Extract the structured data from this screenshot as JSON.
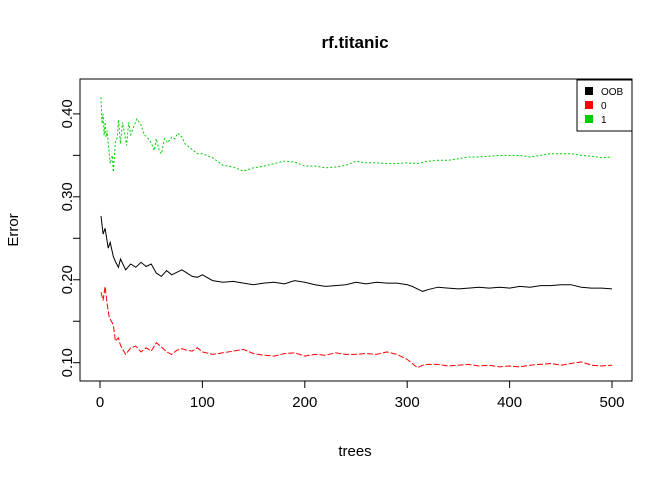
{
  "chart_data": {
    "type": "line",
    "title": "rf.titanic",
    "xlabel": "trees",
    "ylabel": "Error",
    "xlim": [
      0,
      500
    ],
    "ylim": [
      0.09,
      0.43
    ],
    "x_ticks": [
      "0",
      "100",
      "200",
      "300",
      "400",
      "500"
    ],
    "y_ticks": [
      "0.10",
      "0.20",
      "0.30",
      "0.40"
    ],
    "legend_position": "top-right",
    "series": [
      {
        "name": "OOB",
        "color": "#000000",
        "dash": "solid",
        "x": [
          1,
          3,
          5,
          8,
          10,
          13,
          15,
          18,
          20,
          25,
          30,
          35,
          40,
          45,
          50,
          55,
          60,
          65,
          70,
          75,
          80,
          85,
          90,
          95,
          100,
          110,
          120,
          130,
          140,
          150,
          160,
          170,
          180,
          190,
          200,
          210,
          220,
          230,
          240,
          250,
          260,
          270,
          280,
          290,
          300,
          305,
          310,
          315,
          320,
          330,
          340,
          350,
          360,
          370,
          380,
          390,
          400,
          410,
          420,
          430,
          440,
          450,
          460,
          470,
          480,
          490,
          500
        ],
        "values": [
          0.277,
          0.255,
          0.262,
          0.238,
          0.245,
          0.228,
          0.222,
          0.215,
          0.225,
          0.212,
          0.219,
          0.215,
          0.221,
          0.216,
          0.219,
          0.208,
          0.204,
          0.211,
          0.206,
          0.209,
          0.212,
          0.208,
          0.204,
          0.203,
          0.206,
          0.199,
          0.197,
          0.198,
          0.196,
          0.194,
          0.196,
          0.197,
          0.195,
          0.199,
          0.197,
          0.194,
          0.192,
          0.193,
          0.194,
          0.197,
          0.195,
          0.197,
          0.196,
          0.196,
          0.194,
          0.192,
          0.189,
          0.186,
          0.188,
          0.191,
          0.19,
          0.189,
          0.19,
          0.191,
          0.19,
          0.191,
          0.19,
          0.192,
          0.191,
          0.193,
          0.193,
          0.194,
          0.194,
          0.191,
          0.19,
          0.19,
          0.189
        ]
      },
      {
        "name": "0",
        "color": "#ff0000",
        "dash": "6,2",
        "x": [
          1,
          3,
          5,
          7,
          9,
          11,
          13,
          15,
          18,
          20,
          25,
          30,
          35,
          40,
          45,
          50,
          55,
          60,
          65,
          70,
          75,
          80,
          85,
          90,
          95,
          100,
          110,
          120,
          130,
          140,
          150,
          160,
          170,
          180,
          190,
          200,
          210,
          220,
          230,
          240,
          250,
          260,
          270,
          280,
          290,
          300,
          305,
          310,
          315,
          320,
          330,
          340,
          350,
          360,
          370,
          380,
          390,
          400,
          410,
          420,
          430,
          440,
          450,
          460,
          470,
          480,
          490,
          500
        ],
        "values": [
          0.185,
          0.175,
          0.192,
          0.17,
          0.155,
          0.15,
          0.146,
          0.126,
          0.13,
          0.121,
          0.11,
          0.118,
          0.12,
          0.113,
          0.118,
          0.114,
          0.124,
          0.119,
          0.113,
          0.11,
          0.115,
          0.117,
          0.115,
          0.114,
          0.118,
          0.113,
          0.11,
          0.112,
          0.114,
          0.116,
          0.111,
          0.109,
          0.108,
          0.111,
          0.112,
          0.108,
          0.11,
          0.109,
          0.112,
          0.11,
          0.11,
          0.111,
          0.11,
          0.113,
          0.11,
          0.104,
          0.099,
          0.094,
          0.097,
          0.098,
          0.098,
          0.096,
          0.097,
          0.098,
          0.096,
          0.097,
          0.095,
          0.096,
          0.095,
          0.097,
          0.098,
          0.099,
          0.097,
          0.099,
          0.101,
          0.097,
          0.096,
          0.097
        ]
      },
      {
        "name": "1",
        "color": "#00cd00",
        "dash": "2,2",
        "x": [
          1,
          2,
          3,
          4,
          5,
          6,
          7,
          8,
          10,
          12,
          13,
          15,
          17,
          18,
          20,
          22,
          24,
          26,
          28,
          30,
          33,
          36,
          40,
          43,
          46,
          50,
          53,
          55,
          58,
          60,
          63,
          66,
          70,
          73,
          76,
          80,
          83,
          86,
          90,
          95,
          100,
          110,
          120,
          130,
          140,
          150,
          160,
          170,
          180,
          190,
          200,
          210,
          220,
          230,
          240,
          250,
          260,
          270,
          280,
          290,
          300,
          310,
          320,
          330,
          340,
          350,
          360,
          370,
          380,
          390,
          400,
          410,
          420,
          430,
          440,
          450,
          460,
          470,
          480,
          490,
          500
        ],
        "values": [
          0.42,
          0.388,
          0.4,
          0.374,
          0.39,
          0.372,
          0.38,
          0.365,
          0.34,
          0.35,
          0.33,
          0.366,
          0.372,
          0.393,
          0.364,
          0.39,
          0.376,
          0.362,
          0.39,
          0.375,
          0.385,
          0.394,
          0.387,
          0.375,
          0.372,
          0.365,
          0.356,
          0.37,
          0.355,
          0.352,
          0.37,
          0.365,
          0.372,
          0.37,
          0.377,
          0.372,
          0.364,
          0.361,
          0.357,
          0.352,
          0.352,
          0.347,
          0.338,
          0.336,
          0.331,
          0.335,
          0.337,
          0.34,
          0.343,
          0.342,
          0.337,
          0.337,
          0.335,
          0.336,
          0.338,
          0.343,
          0.341,
          0.341,
          0.34,
          0.34,
          0.341,
          0.34,
          0.343,
          0.344,
          0.344,
          0.346,
          0.348,
          0.348,
          0.349,
          0.35,
          0.35,
          0.35,
          0.348,
          0.35,
          0.352,
          0.352,
          0.352,
          0.35,
          0.349,
          0.347,
          0.348
        ]
      }
    ]
  }
}
